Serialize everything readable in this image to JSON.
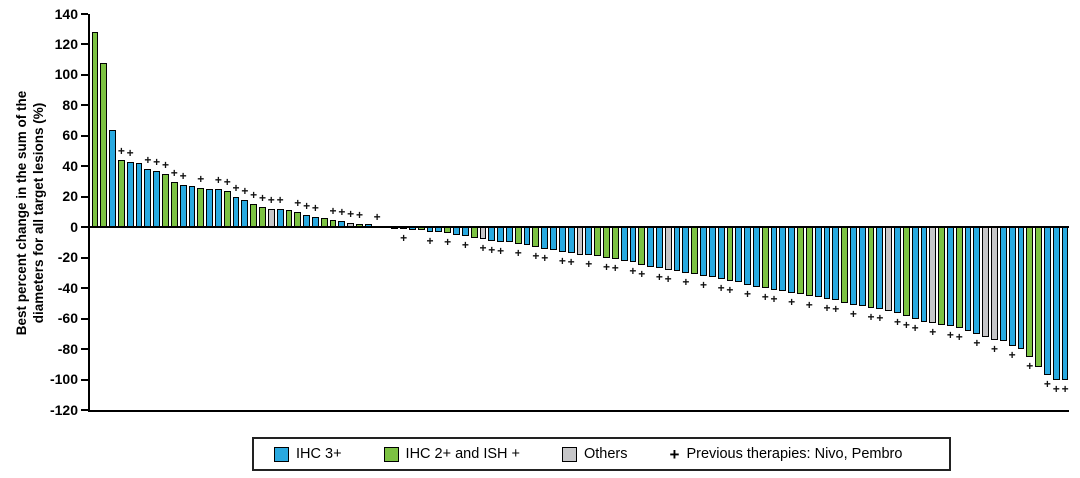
{
  "y_axis": {
    "label_line1": "Best percent change in the sum of the",
    "label_line2": "diameters for all target lesions (%)",
    "ticks": [
      140,
      120,
      100,
      80,
      60,
      40,
      20,
      0,
      -20,
      -40,
      -60,
      -80,
      -100,
      -120
    ]
  },
  "legend": {
    "items": [
      {
        "type": "swatch",
        "color_key": "b",
        "label": "IHC 3+"
      },
      {
        "type": "swatch",
        "color_key": "g",
        "label": "IHC 2+ and ISH +"
      },
      {
        "type": "swatch",
        "color_key": "o",
        "label": "Others"
      },
      {
        "type": "marker",
        "symbol": "+",
        "label": "Previous therapies: Nivo, Pembro"
      }
    ]
  },
  "chart_data": {
    "type": "bar",
    "subtype": "waterfall",
    "title": "",
    "xlabel": "",
    "ylabel": "Best percent change in the sum of the diameters for all target lesions (%)",
    "ylim": [
      -120,
      140
    ],
    "ytick_step": 20,
    "grid": false,
    "legend_position": "bottom",
    "colors": {
      "b": "#29A9E0",
      "g": "#7CC242",
      "o": "#C6C6C8"
    },
    "color_meaning": {
      "b": "IHC 3+",
      "g": "IHC 2+ and ISH +",
      "o": "Others"
    },
    "marker_symbol": "+",
    "marker_meaning": "Previous therapies: Nivo, Pembro",
    "bars": [
      [
        128,
        "g",
        0
      ],
      [
        108,
        "g",
        0
      ],
      [
        64,
        "b",
        0
      ],
      [
        44,
        "g",
        1
      ],
      [
        43,
        "b",
        1
      ],
      [
        42,
        "b",
        0
      ],
      [
        38,
        "b",
        1
      ],
      [
        37,
        "b",
        1
      ],
      [
        35,
        "g",
        1
      ],
      [
        30,
        "g",
        1
      ],
      [
        28,
        "b",
        1
      ],
      [
        27,
        "b",
        0
      ],
      [
        26,
        "g",
        1
      ],
      [
        25,
        "b",
        0
      ],
      [
        25,
        "b",
        1
      ],
      [
        24,
        "g",
        1
      ],
      [
        20,
        "b",
        1
      ],
      [
        18,
        "b",
        1
      ],
      [
        15,
        "g",
        1
      ],
      [
        13,
        "g",
        1
      ],
      [
        12,
        "o",
        1
      ],
      [
        12,
        "b",
        1
      ],
      [
        11,
        "g",
        0
      ],
      [
        10,
        "g",
        1
      ],
      [
        8,
        "b",
        1
      ],
      [
        7,
        "b",
        1
      ],
      [
        6,
        "g",
        0
      ],
      [
        5,
        "g",
        1
      ],
      [
        4,
        "b",
        1
      ],
      [
        3,
        "o",
        1
      ],
      [
        2,
        "g",
        1
      ],
      [
        2,
        "b",
        0
      ],
      [
        1,
        "b",
        1
      ],
      [
        1,
        "b",
        0
      ],
      [
        -1,
        "g",
        0
      ],
      [
        -1,
        "g",
        1
      ],
      [
        -2,
        "b",
        0
      ],
      [
        -2,
        "g",
        0
      ],
      [
        -3,
        "b",
        1
      ],
      [
        -3,
        "b",
        0
      ],
      [
        -4,
        "g",
        1
      ],
      [
        -5,
        "b",
        0
      ],
      [
        -6,
        "b",
        1
      ],
      [
        -7,
        "g",
        0
      ],
      [
        -8,
        "o",
        1
      ],
      [
        -9,
        "b",
        1
      ],
      [
        -10,
        "b",
        1
      ],
      [
        -10,
        "b",
        0
      ],
      [
        -11,
        "g",
        1
      ],
      [
        -12,
        "b",
        0
      ],
      [
        -13,
        "g",
        1
      ],
      [
        -14,
        "b",
        1
      ],
      [
        -15,
        "b",
        0
      ],
      [
        -16,
        "b",
        1
      ],
      [
        -17,
        "b",
        1
      ],
      [
        -18,
        "o",
        0
      ],
      [
        -18,
        "b",
        1
      ],
      [
        -19,
        "g",
        0
      ],
      [
        -20,
        "g",
        1
      ],
      [
        -21,
        "g",
        1
      ],
      [
        -22,
        "b",
        0
      ],
      [
        -23,
        "b",
        1
      ],
      [
        -25,
        "g",
        1
      ],
      [
        -26,
        "b",
        0
      ],
      [
        -27,
        "b",
        1
      ],
      [
        -28,
        "o",
        1
      ],
      [
        -29,
        "b",
        0
      ],
      [
        -30,
        "b",
        1
      ],
      [
        -31,
        "g",
        0
      ],
      [
        -32,
        "b",
        1
      ],
      [
        -33,
        "b",
        0
      ],
      [
        -34,
        "b",
        1
      ],
      [
        -35,
        "g",
        1
      ],
      [
        -36,
        "b",
        0
      ],
      [
        -38,
        "b",
        1
      ],
      [
        -39,
        "b",
        0
      ],
      [
        -40,
        "g",
        1
      ],
      [
        -41,
        "b",
        1
      ],
      [
        -42,
        "b",
        0
      ],
      [
        -43,
        "b",
        1
      ],
      [
        -44,
        "g",
        0
      ],
      [
        -45,
        "g",
        1
      ],
      [
        -46,
        "b",
        0
      ],
      [
        -47,
        "b",
        1
      ],
      [
        -48,
        "b",
        1
      ],
      [
        -50,
        "g",
        0
      ],
      [
        -51,
        "b",
        1
      ],
      [
        -52,
        "b",
        0
      ],
      [
        -53,
        "g",
        1
      ],
      [
        -54,
        "b",
        1
      ],
      [
        -55,
        "o",
        0
      ],
      [
        -56,
        "b",
        1
      ],
      [
        -58,
        "g",
        1
      ],
      [
        -60,
        "b",
        1
      ],
      [
        -62,
        "b",
        0
      ],
      [
        -63,
        "o",
        1
      ],
      [
        -64,
        "g",
        0
      ],
      [
        -65,
        "b",
        1
      ],
      [
        -66,
        "g",
        1
      ],
      [
        -68,
        "b",
        0
      ],
      [
        -70,
        "b",
        1
      ],
      [
        -72,
        "o",
        0
      ],
      [
        -74,
        "o",
        1
      ],
      [
        -75,
        "b",
        0
      ],
      [
        -78,
        "b",
        1
      ],
      [
        -80,
        "b",
        0
      ],
      [
        -85,
        "g",
        1
      ],
      [
        -92,
        "g",
        0
      ],
      [
        -97,
        "b",
        1
      ],
      [
        -100,
        "b",
        1
      ],
      [
        -100,
        "b",
        1
      ]
    ]
  }
}
